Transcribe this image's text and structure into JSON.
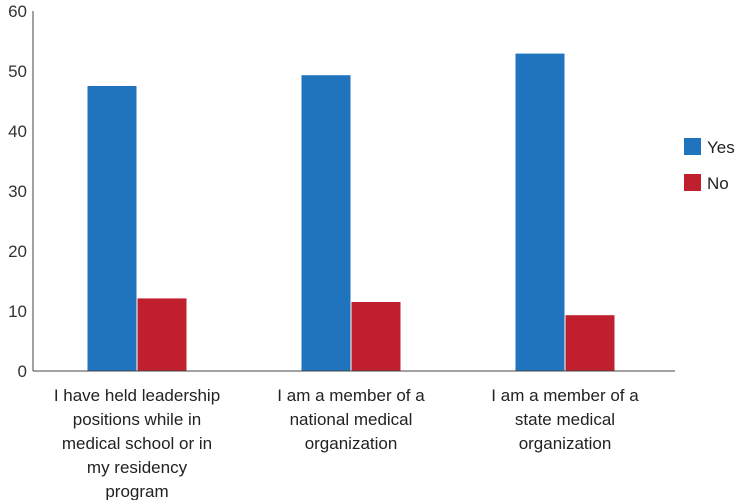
{
  "chart_data": {
    "type": "bar",
    "title": "",
    "xlabel": "",
    "ylabel": "",
    "ylim": [
      0,
      60
    ],
    "yticks": [
      0,
      10,
      20,
      30,
      40,
      50,
      60
    ],
    "grid": false,
    "legend_position": "right",
    "categories": [
      [
        "I have held leadership",
        "positions while in",
        "medical school or in",
        "my residency",
        "program"
      ],
      [
        "I am a member of a",
        "national medical",
        "organization"
      ],
      [
        "I am a member of a",
        "state medical",
        "organization"
      ]
    ],
    "series": [
      {
        "name": "Yes",
        "color": "#1f74bd",
        "values": [
          47.5,
          49.3,
          52.9
        ]
      },
      {
        "name": "No",
        "color": "#c0202d",
        "values": [
          12.1,
          11.5,
          9.3
        ]
      }
    ]
  }
}
